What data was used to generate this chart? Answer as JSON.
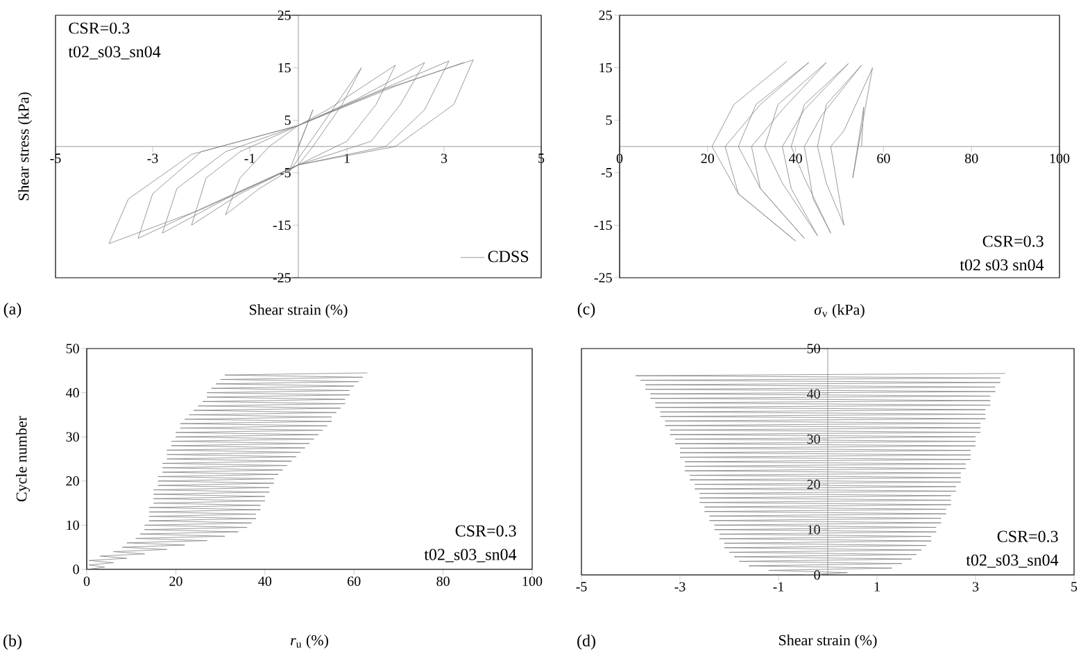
{
  "chart_data": [
    {
      "type": "line",
      "xlabel": "Shear strain (%)",
      "ylabel": "Shear stress (kPa)",
      "xlim": [
        -5,
        5
      ],
      "ylim": [
        -25,
        25
      ],
      "xticks": [
        -5,
        -3,
        -1,
        1,
        3,
        5
      ],
      "yticks": [
        -25,
        -15,
        -5,
        5,
        15,
        25
      ],
      "legend": "bottom right",
      "annotations": [
        "CSR=0.3",
        "t02_s03_sn04",
        "(a)"
      ],
      "series": [
        {
          "name": "CDSS",
          "color": "#808080",
          "x": [
            0,
            0.3,
            -0.2,
            1.3,
            0.9,
            0.3,
            0,
            -0.8,
            -1.5,
            -1.2,
            -0.6,
            0,
            0.6,
            2.0,
            1.6,
            1.0,
            0,
            -1.2,
            -2.2,
            -1.9,
            -1.2,
            0,
            1.2,
            2.6,
            2.1,
            1.5,
            0,
            -1.5,
            -2.8,
            -2.5,
            -1.5,
            0,
            1.5,
            3.1,
            2.6,
            1.8,
            0,
            -1.8,
            -3.3,
            -3.0,
            -2.0,
            0,
            1.8,
            3.6,
            3.2,
            2.0,
            0,
            -2.0,
            -3.9,
            -3.5,
            -2.2,
            0,
            2.0,
            3.4
          ],
          "values": [
            0,
            7,
            -5,
            15,
            8,
            0,
            -3.5,
            -8,
            -13,
            -6,
            0,
            4,
            7,
            15.5,
            8,
            1,
            -3.5,
            -9,
            -15,
            -6,
            -1,
            4,
            9,
            16,
            8,
            1,
            -3.5,
            -10,
            -16.5,
            -8,
            -1,
            4,
            10,
            16.3,
            7,
            0,
            -3.5,
            -11,
            -17.5,
            -9,
            -1,
            4,
            11,
            16.5,
            8,
            0,
            -3.5,
            -12,
            -18.5,
            -10,
            -1.5,
            4,
            11.5,
            16
          ]
        }
      ]
    },
    {
      "type": "line",
      "xlabel": "*σ*$_{v}$ (kPa)",
      "xlim": [
        0,
        100
      ],
      "ylim": [
        -25,
        25
      ],
      "xticks": [
        0,
        20,
        40,
        60,
        80,
        100
      ],
      "yticks": [
        -25,
        -15,
        -5,
        5,
        15,
        25
      ],
      "annotations": [
        "CSR=0.3",
        "t02  s03  sn04",
        "(c)"
      ],
      "series": [
        {
          "color": "#808080",
          "x": [
            55,
            55.5,
            53,
            57.5,
            51,
            48,
            50,
            51,
            47,
            45,
            47,
            55,
            46,
            42,
            44,
            48,
            42,
            39,
            42,
            52,
            42,
            37,
            39,
            45,
            37,
            33,
            36,
            47,
            37,
            30,
            32,
            42,
            32,
            27,
            31,
            43,
            32,
            24,
            27,
            40,
            27,
            21,
            26,
            38
          ],
          "values": [
            0,
            7.5,
            -6,
            15,
            3,
            0,
            -10,
            -15,
            -7,
            0,
            8,
            15.5,
            6,
            0,
            -10,
            -16.5,
            -6,
            0,
            8,
            15.8,
            7,
            0,
            -8,
            -17,
            -7,
            0,
            8,
            16,
            7,
            0,
            -8,
            -17.5,
            -8,
            0,
            8,
            16,
            8,
            0,
            -9,
            -18,
            -9,
            0,
            8,
            16.2
          ]
        }
      ]
    },
    {
      "type": "line",
      "xlabel": "*r*$_{u}$ (%)",
      "ylabel": "Cycle number",
      "xlim": [
        0,
        100
      ],
      "ylim": [
        0,
        50
      ],
      "xticks": [
        0,
        20,
        40,
        60,
        80,
        100
      ],
      "yticks": [
        0,
        10,
        20,
        30,
        40,
        50
      ],
      "annotations": [
        "CSR=0.3",
        "t02_s03_sn04",
        "(b)"
      ],
      "series": [
        {
          "color": "#808080",
          "x": [
            0,
            4,
            0.5,
            6,
            0.5,
            9,
            3,
            13,
            6,
            18,
            8,
            22,
            9,
            27,
            11,
            31,
            12,
            34,
            13,
            36,
            13,
            37,
            14,
            38,
            14,
            38,
            14,
            39,
            14,
            39,
            15,
            40,
            15,
            40,
            15,
            41,
            15,
            41,
            16,
            42,
            16,
            42,
            16,
            43,
            17,
            44,
            17,
            45,
            17,
            46,
            18,
            47,
            18,
            48,
            18,
            49,
            19,
            50,
            19,
            51,
            20,
            52,
            20,
            53,
            21,
            54,
            21,
            55,
            22,
            55,
            23,
            56,
            24,
            57,
            25,
            58,
            26,
            58,
            27,
            59,
            27,
            59,
            28,
            60,
            29,
            61,
            30,
            62,
            31,
            63
          ],
          "values": [
            0,
            0.5,
            1,
            1.5,
            2,
            2.5,
            3,
            3.5,
            4,
            4.5,
            5,
            5.5,
            6,
            6.5,
            7,
            7.5,
            8,
            8.5,
            9,
            9.5,
            10,
            10.5,
            11,
            11.5,
            12,
            12.5,
            13,
            13.5,
            14,
            14.5,
            15,
            15.5,
            16,
            16.5,
            17,
            17.5,
            18,
            18.5,
            19,
            19.5,
            20,
            20.5,
            21,
            21.5,
            22,
            22.5,
            23,
            23.5,
            24,
            24.5,
            25,
            25.5,
            26,
            26.5,
            27,
            27.5,
            28,
            28.5,
            29,
            29.5,
            30,
            30.5,
            31,
            31.5,
            32,
            32.5,
            33,
            33.5,
            34,
            34.5,
            35,
            35.5,
            36,
            36.5,
            37,
            37.5,
            38,
            38.5,
            39,
            39.5,
            40,
            40.5,
            41,
            41.5,
            42,
            42.5,
            43,
            43.5,
            44,
            44.5
          ]
        }
      ]
    },
    {
      "type": "line",
      "xlabel": "Shear strain (%)",
      "xlim": [
        -5,
        5
      ],
      "ylim": [
        0,
        50
      ],
      "xticks": [
        -5,
        -3,
        -1,
        1,
        3,
        5
      ],
      "yticks": [
        0,
        10,
        20,
        30,
        40,
        50
      ],
      "annotations": [
        "CSR=0.3",
        "t02_s03_sn04",
        "(d)"
      ],
      "series": [
        {
          "color": "#808080",
          "x": [
            -0.5,
            0.4,
            -1.2,
            1.3,
            -1.6,
            1.5,
            -1.8,
            1.7,
            -1.9,
            1.8,
            -2.0,
            1.9,
            -2.1,
            2.0,
            -2.1,
            2.1,
            -2.2,
            2.1,
            -2.2,
            2.2,
            -2.3,
            2.2,
            -2.3,
            2.3,
            -2.4,
            2.3,
            -2.4,
            2.4,
            -2.5,
            2.4,
            -2.5,
            2.5,
            -2.6,
            2.5,
            -2.6,
            2.5,
            -2.6,
            2.6,
            -2.7,
            2.6,
            -2.7,
            2.7,
            -2.8,
            2.7,
            -2.8,
            2.7,
            -2.9,
            2.8,
            -2.9,
            2.8,
            -2.9,
            2.9,
            -3.0,
            2.9,
            -3.0,
            2.9,
            -3.0,
            3.0,
            -3.1,
            3.0,
            -3.1,
            3.0,
            -3.2,
            3.1,
            -3.2,
            3.1,
            -3.3,
            3.1,
            -3.3,
            3.2,
            -3.4,
            3.2,
            -3.4,
            3.2,
            -3.5,
            3.3,
            -3.5,
            3.3,
            -3.6,
            3.3,
            -3.6,
            3.4,
            -3.7,
            3.4,
            -3.7,
            3.5,
            -3.8,
            3.5,
            -3.9,
            3.6
          ],
          "values": [
            0,
            0.5,
            1,
            1.5,
            2,
            2.5,
            3,
            3.5,
            4,
            4.5,
            5,
            5.5,
            6,
            6.5,
            7,
            7.5,
            8,
            8.5,
            9,
            9.5,
            10,
            10.5,
            11,
            11.5,
            12,
            12.5,
            13,
            13.5,
            14,
            14.5,
            15,
            15.5,
            16,
            16.5,
            17,
            17.5,
            18,
            18.5,
            19,
            19.5,
            20,
            20.5,
            21,
            21.5,
            22,
            22.5,
            23,
            23.5,
            24,
            24.5,
            25,
            25.5,
            26,
            26.5,
            27,
            27.5,
            28,
            28.5,
            29,
            29.5,
            30,
            30.5,
            31,
            31.5,
            32,
            32.5,
            33,
            33.5,
            34,
            34.5,
            35,
            35.5,
            36,
            36.5,
            37,
            37.5,
            38,
            38.5,
            39,
            39.5,
            40,
            40.5,
            41,
            41.5,
            42,
            42.5,
            43,
            43.5,
            44,
            44.5
          ]
        }
      ]
    }
  ]
}
